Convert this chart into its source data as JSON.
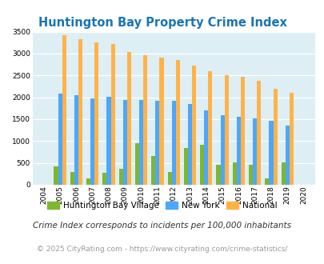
{
  "title": "Huntington Bay Property Crime Index",
  "years": [
    2004,
    2005,
    2006,
    2007,
    2008,
    2009,
    2010,
    2011,
    2012,
    2013,
    2014,
    2015,
    2016,
    2017,
    2018,
    2019,
    2020
  ],
  "huntington": [
    0,
    420,
    300,
    150,
    280,
    360,
    950,
    650,
    290,
    850,
    920,
    460,
    510,
    460,
    150,
    510,
    0
  ],
  "new_york": [
    0,
    2080,
    2050,
    1980,
    2010,
    1940,
    1940,
    1920,
    1920,
    1840,
    1700,
    1590,
    1550,
    1510,
    1460,
    1360,
    0
  ],
  "national": [
    0,
    3420,
    3330,
    3260,
    3210,
    3040,
    2960,
    2910,
    2860,
    2720,
    2590,
    2500,
    2470,
    2380,
    2200,
    2110,
    0
  ],
  "huntington_color": "#7cb82f",
  "new_york_color": "#4da6ff",
  "national_color": "#ffb347",
  "bg_color": "#ddeef5",
  "title_color": "#1a75b5",
  "ylabel_max": 3500,
  "yticks": [
    0,
    500,
    1000,
    1500,
    2000,
    2500,
    3000,
    3500
  ],
  "subtitle": "Crime Index corresponds to incidents per 100,000 inhabitants",
  "footer": "© 2025 CityRating.com - https://www.cityrating.com/crime-statistics/",
  "legend_labels": [
    "Huntington Bay Village",
    "New York",
    "National"
  ],
  "bar_width": 0.25
}
